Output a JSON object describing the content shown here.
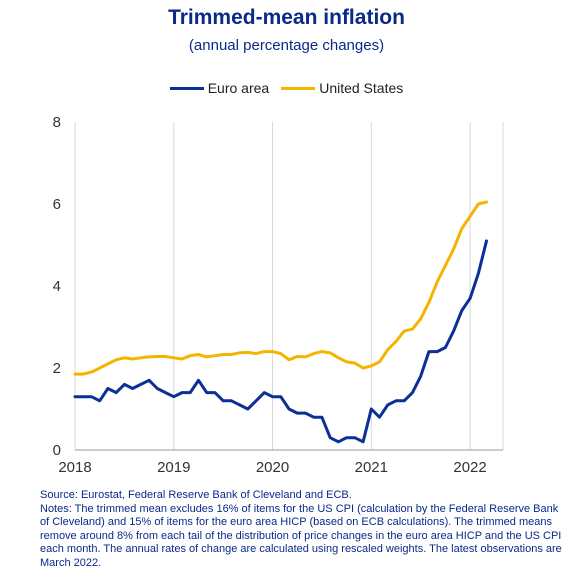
{
  "header": {
    "title": "Trimmed-mean inflation",
    "subtitle": "(annual percentage changes)"
  },
  "colors": {
    "euro_area": "#0a2f96",
    "united_states": "#f5b400",
    "grid": "#d9d9d9",
    "text_blue": "#0a2a8a"
  },
  "chart_data": {
    "type": "line",
    "title": "Trimmed-mean inflation",
    "subtitle": "(annual percentage changes)",
    "xlabel": "",
    "ylabel": "",
    "xlim": [
      "2018-01",
      "2022-05"
    ],
    "ylim": [
      0,
      8
    ],
    "yticks": [
      0,
      2,
      4,
      6,
      8
    ],
    "xticks": [
      "2018",
      "2019",
      "2020",
      "2021",
      "2022"
    ],
    "grid": "vertical",
    "legend": "top-center",
    "x": [
      "2018-01",
      "2018-02",
      "2018-03",
      "2018-04",
      "2018-05",
      "2018-06",
      "2018-07",
      "2018-08",
      "2018-09",
      "2018-10",
      "2018-11",
      "2018-12",
      "2019-01",
      "2019-02",
      "2019-03",
      "2019-04",
      "2019-05",
      "2019-06",
      "2019-07",
      "2019-08",
      "2019-09",
      "2019-10",
      "2019-11",
      "2019-12",
      "2020-01",
      "2020-02",
      "2020-03",
      "2020-04",
      "2020-05",
      "2020-06",
      "2020-07",
      "2020-08",
      "2020-09",
      "2020-10",
      "2020-11",
      "2020-12",
      "2021-01",
      "2021-02",
      "2021-03",
      "2021-04",
      "2021-05",
      "2021-06",
      "2021-07",
      "2021-08",
      "2021-09",
      "2021-10",
      "2021-11",
      "2021-12",
      "2022-01",
      "2022-02",
      "2022-03"
    ],
    "series": [
      {
        "name": "Euro area",
        "values": [
          1.3,
          1.3,
          1.3,
          1.2,
          1.5,
          1.4,
          1.6,
          1.5,
          1.6,
          1.7,
          1.5,
          1.4,
          1.3,
          1.4,
          1.4,
          1.7,
          1.4,
          1.4,
          1.2,
          1.2,
          1.1,
          1.0,
          1.2,
          1.4,
          1.3,
          1.3,
          1.0,
          0.9,
          0.9,
          0.8,
          0.8,
          0.3,
          0.2,
          0.3,
          0.3,
          0.2,
          1.0,
          0.8,
          1.1,
          1.2,
          1.2,
          1.4,
          1.8,
          2.4,
          2.4,
          2.5,
          2.9,
          3.4,
          3.7,
          4.3,
          5.1
        ]
      },
      {
        "name": "United States",
        "values": [
          1.85,
          1.85,
          1.9,
          2.0,
          2.1,
          2.2,
          2.25,
          2.22,
          2.25,
          2.27,
          2.28,
          2.28,
          2.25,
          2.22,
          2.3,
          2.33,
          2.27,
          2.3,
          2.33,
          2.33,
          2.37,
          2.38,
          2.35,
          2.4,
          2.4,
          2.35,
          2.2,
          2.28,
          2.27,
          2.35,
          2.4,
          2.37,
          2.25,
          2.15,
          2.12,
          2.0,
          2.05,
          2.15,
          2.45,
          2.65,
          2.9,
          2.95,
          3.2,
          3.6,
          4.1,
          4.5,
          4.9,
          5.4,
          5.7,
          6.0,
          6.05
        ]
      }
    ]
  },
  "footnote": {
    "source": "Source: Eurostat, Federal Reserve Bank of Cleveland and ECB.",
    "notes": "Notes: The trimmed mean excludes 16% of items for the US CPI (calculation by the Federal Reserve Bank of Cleveland) and 15% of items for the euro area HICP (based on ECB calculations). The trimmed means remove around 8% from each tail of the distribution of price changes in the euro area HICP and the US CPI each month. The annual rates of change are calculated using rescaled weights. The latest observations are March 2022."
  }
}
